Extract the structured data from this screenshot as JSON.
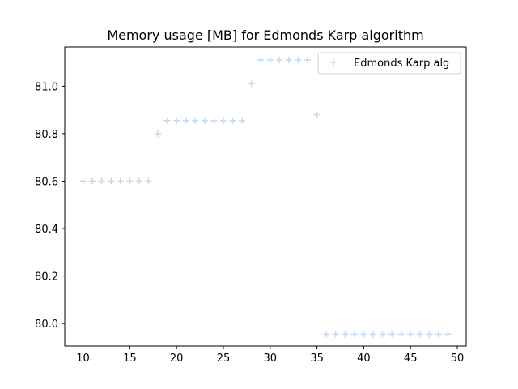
{
  "chart_data": {
    "type": "scatter",
    "title": "Memory usage [MB] for Edmonds Karp algorithm",
    "xlabel": "",
    "ylabel": "",
    "xlim": [
      8.05,
      50.95
    ],
    "ylim": [
      79.905,
      81.165
    ],
    "xticks": [
      10,
      15,
      20,
      25,
      30,
      35,
      40,
      45,
      50
    ],
    "yticks": [
      80.0,
      80.2,
      80.4,
      80.6,
      80.8,
      81.0
    ],
    "xtick_labels": [
      "10",
      "15",
      "20",
      "25",
      "30",
      "35",
      "40",
      "45",
      "50"
    ],
    "ytick_labels": [
      "80.0",
      "80.2",
      "80.4",
      "80.6",
      "80.8",
      "81.0"
    ],
    "grid": false,
    "legend_position": "top-right",
    "marker": "plus",
    "series": [
      {
        "name": "Edmonds Karp alg",
        "color": "#c6dbef",
        "x": [
          10,
          11,
          12,
          13,
          14,
          15,
          16,
          17,
          18,
          19,
          20,
          21,
          22,
          23,
          24,
          25,
          26,
          27,
          28,
          29,
          30,
          31,
          32,
          33,
          34,
          35,
          36,
          37,
          38,
          39,
          40,
          41,
          42,
          43,
          44,
          45,
          46,
          47,
          48,
          49
        ],
        "y": [
          80.6,
          80.6,
          80.6,
          80.6,
          80.6,
          80.6,
          80.6,
          80.6,
          80.8,
          80.855,
          80.855,
          80.855,
          80.855,
          80.855,
          80.855,
          80.855,
          80.855,
          80.855,
          81.01,
          81.11,
          81.11,
          81.11,
          81.11,
          81.11,
          81.11,
          80.88,
          79.955,
          79.955,
          79.955,
          79.955,
          79.955,
          79.955,
          79.955,
          79.955,
          79.955,
          79.955,
          79.955,
          79.955,
          79.955,
          79.955
        ]
      }
    ]
  }
}
